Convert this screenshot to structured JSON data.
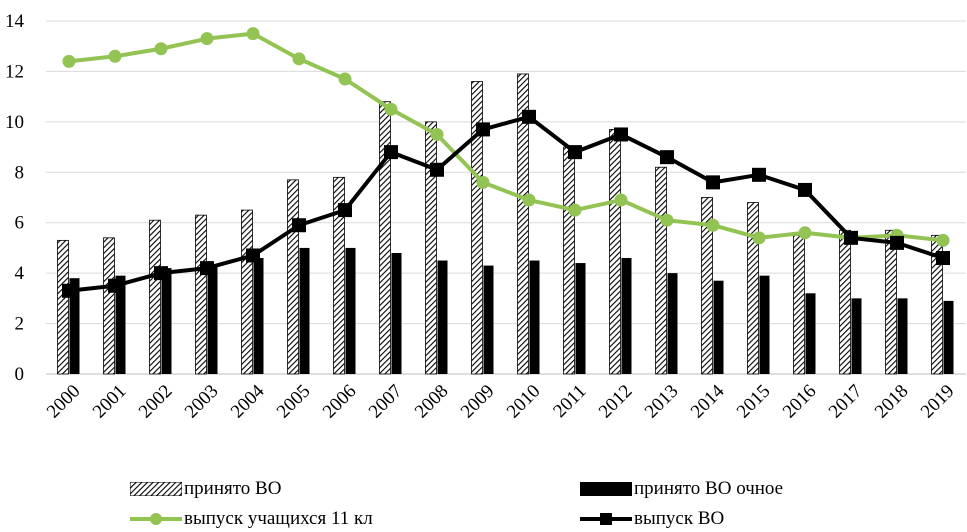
{
  "chart_data": {
    "type": "bar",
    "title": "",
    "xlabel": "",
    "ylabel": "",
    "ylim": [
      0,
      14
    ],
    "yticks": [
      0,
      2,
      4,
      6,
      8,
      10,
      12,
      14
    ],
    "grid": true,
    "legend_position": "bottom",
    "categories": [
      "2000",
      "2001",
      "2002",
      "2003",
      "2004",
      "2005",
      "2006",
      "2007",
      "2008",
      "2009",
      "2010",
      "2011",
      "2012",
      "2013",
      "2014",
      "2015",
      "2016",
      "2017",
      "2018",
      "2019"
    ],
    "series": [
      {
        "name": "принято ВО",
        "kind": "bar",
        "pattern": "hatched",
        "values": [
          5.3,
          5.4,
          6.1,
          6.3,
          6.5,
          7.7,
          7.8,
          10.8,
          10.0,
          11.6,
          11.9,
          9.0,
          9.7,
          8.2,
          7.0,
          6.8,
          5.5,
          5.7,
          5.7,
          5.5
        ]
      },
      {
        "name": "принято ВО очное",
        "kind": "bar",
        "color": "#000000",
        "values": [
          3.8,
          3.9,
          4.2,
          4.3,
          4.6,
          5.0,
          5.0,
          4.8,
          4.5,
          4.3,
          4.5,
          4.4,
          4.6,
          4.0,
          3.7,
          3.9,
          3.2,
          3.0,
          3.0,
          2.9
        ]
      },
      {
        "name": "выпуск учащихся 11 кл",
        "kind": "line",
        "color": "#92c353",
        "marker": "circle",
        "values": [
          12.4,
          12.6,
          12.9,
          13.3,
          13.5,
          12.5,
          11.7,
          10.5,
          9.5,
          7.6,
          6.9,
          6.5,
          6.9,
          6.1,
          5.9,
          5.4,
          5.6,
          5.4,
          5.5,
          5.3
        ]
      },
      {
        "name": "выпуск ВО",
        "kind": "line",
        "color": "#000000",
        "marker": "square",
        "values": [
          3.3,
          3.5,
          4.0,
          4.2,
          4.7,
          5.9,
          6.5,
          8.8,
          8.1,
          9.7,
          10.2,
          8.8,
          9.5,
          8.6,
          7.6,
          7.9,
          7.3,
          5.4,
          5.2,
          4.6
        ]
      }
    ]
  }
}
